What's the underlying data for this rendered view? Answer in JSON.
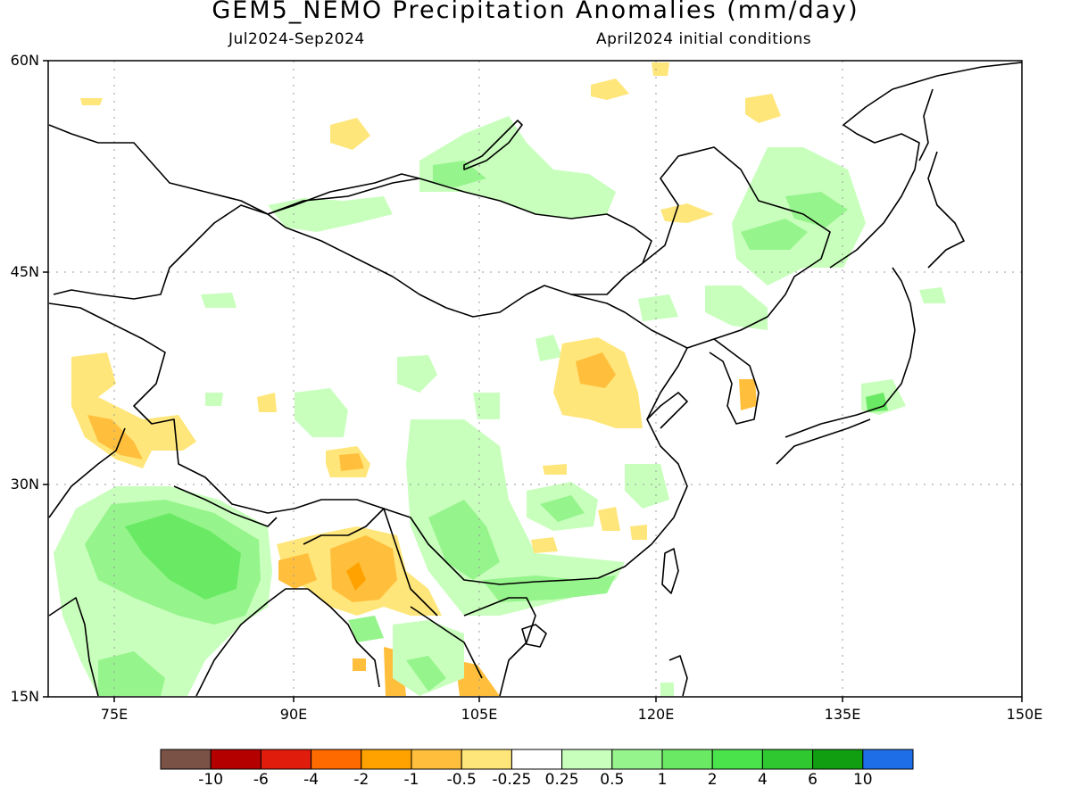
{
  "title": "GEM5_NEMO Precipitation Anomalies (mm/day)",
  "subtitle_left": "Jul2024-Sep2024",
  "subtitle_right": "April2024 initial conditions",
  "lat_labels": [
    "60N",
    "45N",
    "30N",
    "15N"
  ],
  "lon_labels": [
    "75E",
    "90E",
    "105E",
    "120E",
    "135E",
    "150E"
  ],
  "colorbar": {
    "colors": [
      "#7a5246",
      "#b50000",
      "#e01c0c",
      "#ff6a00",
      "#ffa200",
      "#ffbf3c",
      "#ffe67a",
      "#ffffff",
      "#c8ffbc",
      "#96f48c",
      "#6aea64",
      "#4ae34c",
      "#30c830",
      "#119f11",
      "#1e6ee8"
    ],
    "labels": [
      "-10",
      "-6",
      "-4",
      "-2",
      "-1",
      "-0.5",
      "-0.25",
      "0.25",
      "0.5",
      "1",
      "2",
      "4",
      "6",
      "10"
    ]
  }
}
